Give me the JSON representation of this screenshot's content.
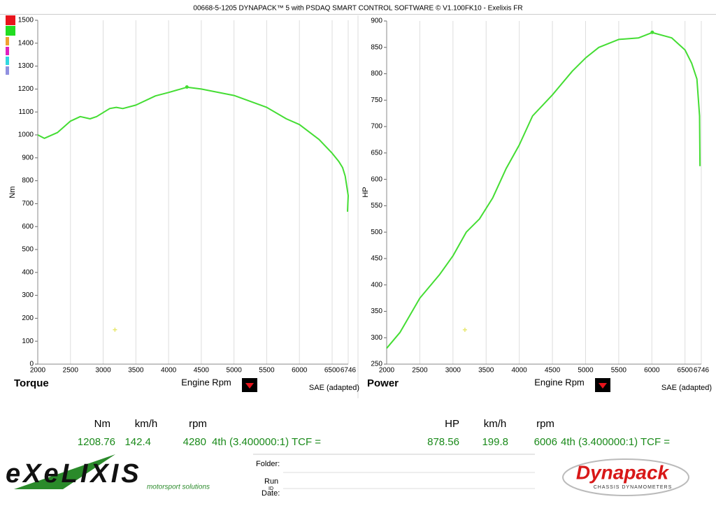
{
  "header": {
    "title": "00668-5-1205 DYNAPACK™ 5 with PSDAQ SMART CONTROL SOFTWARE © V1.100FK10 - Exelixis FR"
  },
  "chart_data": [
    {
      "type": "line",
      "title": "Torque",
      "x_label": "Engine Rpm",
      "y_label": "Nm",
      "note": "SAE (adapted)",
      "x": [
        2000,
        2100,
        2300,
        2500,
        2650,
        2800,
        2900,
        3100,
        3200,
        3300,
        3500,
        3800,
        4000,
        4280,
        4500,
        5000,
        5500,
        5800,
        6000,
        6300,
        6500,
        6600,
        6660,
        6700,
        6746,
        6735
      ],
      "series": [
        {
          "color": "#44dd33",
          "values": [
            1000,
            985,
            1010,
            1060,
            1080,
            1070,
            1080,
            1115,
            1120,
            1115,
            1130,
            1170,
            1185,
            1208,
            1200,
            1172,
            1120,
            1070,
            1045,
            980,
            920,
            885,
            857,
            820,
            735,
            665
          ]
        }
      ],
      "cursor": {
        "x": 3180,
        "y": 150,
        "color": "#e8e870"
      },
      "xlim": [
        2000,
        6746
      ],
      "ylim": [
        0,
        1500
      ],
      "xticks": [
        2000,
        2500,
        3000,
        3500,
        4000,
        4500,
        5000,
        5500,
        6000,
        6500,
        6746
      ],
      "yticks": [
        0,
        100,
        200,
        300,
        400,
        500,
        600,
        700,
        800,
        900,
        1000,
        1100,
        1200,
        1300,
        1400,
        1500
      ],
      "grid": "x"
    },
    {
      "type": "line",
      "title": "Power",
      "x_label": "Engine Rpm",
      "y_label": "HP",
      "note": "SAE (adapted)",
      "x": [
        2000,
        2200,
        2500,
        2800,
        3000,
        3200,
        3400,
        3600,
        3800,
        4000,
        4200,
        4500,
        4800,
        5000,
        5200,
        5500,
        5800,
        6006,
        6300,
        6500,
        6600,
        6680,
        6720,
        6726
      ],
      "series": [
        {
          "color": "#44dd33",
          "values": [
            280,
            310,
            375,
            420,
            455,
            500,
            525,
            565,
            620,
            665,
            720,
            760,
            805,
            830,
            850,
            865,
            868,
            878,
            868,
            845,
            820,
            790,
            720,
            625
          ]
        }
      ],
      "cursor": {
        "x": 3180,
        "y": 315,
        "color": "#e8e870"
      },
      "xlim": [
        2000,
        6746
      ],
      "ylim": [
        250,
        900
      ],
      "xticks": [
        2000,
        2500,
        3000,
        3500,
        4000,
        4500,
        5000,
        5500,
        6000,
        6500,
        6746
      ],
      "yticks": [
        250,
        300,
        350,
        400,
        450,
        500,
        550,
        600,
        650,
        700,
        750,
        800,
        850,
        900
      ],
      "grid": "x"
    }
  ],
  "readouts": [
    {
      "headers": [
        "Nm",
        "km/h",
        "rpm"
      ],
      "values": [
        1208.76,
        142.4,
        4280
      ],
      "gear": "4th (3.400000:1) TCF ="
    },
    {
      "headers": [
        "HP",
        "km/h",
        "rpm"
      ],
      "values": [
        878.56,
        199.8,
        6006
      ],
      "gear": "4th (3.400000:1) TCF ="
    }
  ],
  "footer": {
    "logo": "eXeLIXIS",
    "tagline": "motorsport solutions",
    "folder": "Folder:",
    "run": "Run",
    "id": "ID",
    "date": "Date:",
    "brand": "Dynapack",
    "brand_tagline": "CHASSIS DYNAMOMETERS"
  }
}
